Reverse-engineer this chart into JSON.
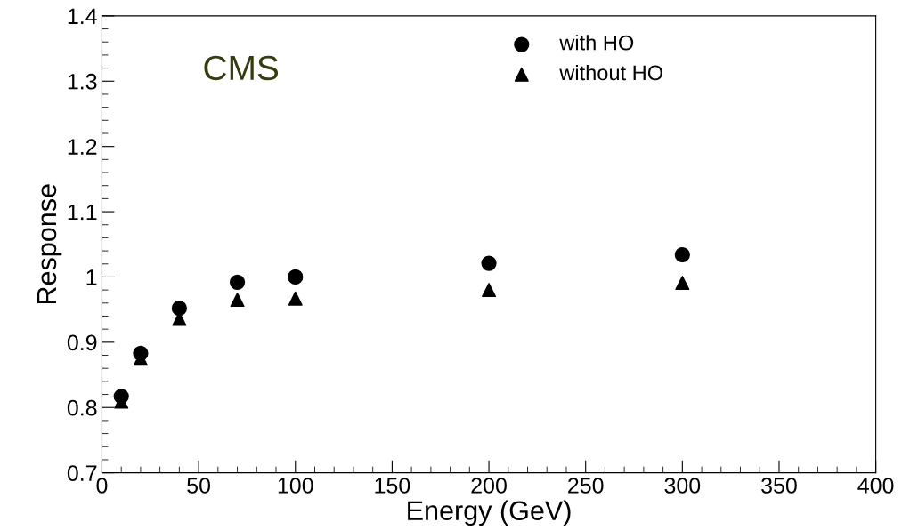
{
  "chart_data": {
    "type": "scatter",
    "xlabel": "Energy (GeV)",
    "ylabel": "Response",
    "x": [
      10,
      20,
      40,
      70,
      100,
      200,
      300
    ],
    "series": [
      {
        "name": "with HO",
        "color": "#000000",
        "marker": "circle",
        "values": [
          0.817,
          0.883,
          0.952,
          0.992,
          1.0,
          1.021,
          1.034
        ]
      },
      {
        "name": "without HO",
        "color": "#000000",
        "marker": "triangle",
        "values": [
          0.809,
          0.875,
          0.936,
          0.965,
          0.967,
          0.98,
          0.991
        ]
      }
    ],
    "xlim": [
      0,
      400
    ],
    "xticks": [
      0,
      50,
      100,
      150,
      200,
      250,
      300,
      350,
      400
    ],
    "ylim": [
      0.7,
      1.4
    ],
    "yticks": [
      0.7,
      0.8,
      0.9,
      1,
      1.1,
      1.2,
      1.3,
      1.4
    ],
    "annotations": [
      "CMS"
    ],
    "grid": false,
    "legend": "top right"
  }
}
